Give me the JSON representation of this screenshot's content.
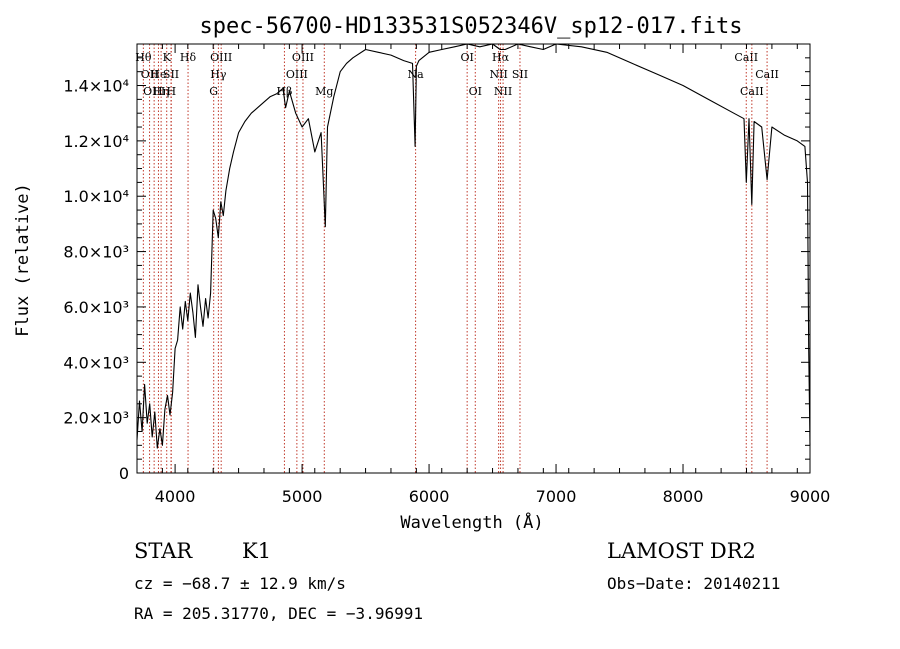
{
  "chart_data": {
    "type": "line",
    "title": "spec-56700-HD133531S052346V_sp12-017.fits",
    "xlabel": "Wavelength (Å)",
    "ylabel": "Flux (relative)",
    "xlim": [
      3700,
      9000
    ],
    "ylim": [
      0,
      15500
    ],
    "x_ticks": [
      4000,
      5000,
      6000,
      7000,
      8000,
      9000
    ],
    "y_ticks": [
      {
        "value": 0,
        "label": "0"
      },
      {
        "value": 2000,
        "label": "2.0×10³"
      },
      {
        "value": 4000,
        "label": "4.0×10³"
      },
      {
        "value": 6000,
        "label": "6.0×10³"
      },
      {
        "value": 8000,
        "label": "8.0×10³"
      },
      {
        "value": 10000,
        "label": "1.0×10⁴"
      },
      {
        "value": 12000,
        "label": "1.2×10⁴"
      },
      {
        "value": 14000,
        "label": "1.4×10⁴"
      }
    ],
    "grid": false,
    "series": [
      {
        "x": [
          3700,
          3720,
          3740,
          3760,
          3780,
          3800,
          3820,
          3840,
          3860,
          3880,
          3900,
          3920,
          3940,
          3960,
          3980,
          4000,
          4020,
          4040,
          4060,
          4080,
          4100,
          4120,
          4140,
          4160,
          4180,
          4200,
          4220,
          4240,
          4260,
          4280,
          4300,
          4320,
          4340,
          4360,
          4380,
          4400,
          4430,
          4460,
          4500,
          4550,
          4600,
          4650,
          4700,
          4750,
          4800,
          4850,
          4870,
          4900,
          4950,
          5000,
          5050,
          5100,
          5150,
          5170,
          5183,
          5200,
          5250,
          5300,
          5350,
          5400,
          5500,
          5600,
          5700,
          5800,
          5870,
          5890,
          5900,
          5920,
          6000,
          6100,
          6200,
          6300,
          6400,
          6500,
          6560,
          6600,
          6700,
          6800,
          6900,
          7000,
          7200,
          7400,
          7600,
          7800,
          8000,
          8200,
          8400,
          8480,
          8498,
          8520,
          8542,
          8560,
          8620,
          8662,
          8700,
          8800,
          8900,
          8960,
          8980,
          8990,
          9000
        ],
        "y": [
          1200,
          2600,
          1500,
          3200,
          1800,
          2500,
          1300,
          2200,
          900,
          1600,
          1000,
          2300,
          2800,
          2100,
          2900,
          4500,
          4800,
          6000,
          5200,
          6200,
          5500,
          6500,
          5800,
          4900,
          6800,
          6000,
          5300,
          6300,
          5600,
          6500,
          9500,
          9200,
          8500,
          9800,
          9300,
          10200,
          11000,
          11600,
          12300,
          12700,
          13000,
          13200,
          13400,
          13600,
          13700,
          13900,
          13200,
          13800,
          13000,
          12500,
          12800,
          11600,
          12300,
          10200,
          8900,
          12500,
          13600,
          14500,
          14800,
          15000,
          15300,
          15200,
          15100,
          14900,
          14800,
          11800,
          14700,
          14900,
          15200,
          15300,
          15400,
          15500,
          15400,
          15500,
          15300,
          15300,
          15500,
          15400,
          15300,
          15500,
          15400,
          15200,
          14800,
          14400,
          14000,
          13500,
          13000,
          12800,
          10500,
          12800,
          9700,
          12700,
          12500,
          10600,
          12500,
          12200,
          12000,
          11800,
          10500,
          4500,
          1000
        ]
      }
    ],
    "line_markers": [
      {
        "x": 3750,
        "label": "Hθ",
        "row": 0
      },
      {
        "x": 3799,
        "label": "OII",
        "row": 1
      },
      {
        "x": 3835,
        "label": "OIII",
        "row": 2
      },
      {
        "x": 3869,
        "label": "He",
        "row": 1
      },
      {
        "x": 3890,
        "label": "Hη",
        "row": 2
      },
      {
        "x": 3934,
        "label": "K",
        "row": 0
      },
      {
        "x": 3968,
        "label": "SII",
        "row": 1
      },
      {
        "x": 3970,
        "label": "H",
        "row": 2
      },
      {
        "x": 4102,
        "label": "Hδ",
        "row": 0
      },
      {
        "x": 4304,
        "label": "G",
        "row": 2
      },
      {
        "x": 4341,
        "label": "Hγ",
        "row": 1
      },
      {
        "x": 4363,
        "label": "OIII",
        "row": 0
      },
      {
        "x": 4861,
        "label": "Hβ",
        "row": 2
      },
      {
        "x": 4959,
        "label": "OIII",
        "row": 1
      },
      {
        "x": 5007,
        "label": "OIII",
        "row": 0
      },
      {
        "x": 5175,
        "label": "Mg",
        "row": 2
      },
      {
        "x": 5894,
        "label": "Na",
        "row": 1
      },
      {
        "x": 6300,
        "label": "OI",
        "row": 0
      },
      {
        "x": 6364,
        "label": "OI",
        "row": 2
      },
      {
        "x": 6548,
        "label": "NII",
        "row": 1
      },
      {
        "x": 6563,
        "label": "Hα",
        "row": 0
      },
      {
        "x": 6583,
        "label": "NII",
        "row": 2
      },
      {
        "x": 6716,
        "label": "SII",
        "row": 1
      },
      {
        "x": 8498,
        "label": "CaII",
        "row": 0
      },
      {
        "x": 8542,
        "label": "CaII",
        "row": 2
      },
      {
        "x": 8662,
        "label": "CaII",
        "row": 1
      }
    ]
  },
  "info": {
    "class_label": "STAR",
    "subclass_label": "K1",
    "survey_label": "LAMOST DR2",
    "redshift_line": "cz = −68.7 ± 12.9 km/s",
    "obs_date_line": "Obs−Date: 20140211",
    "coords_line": "RA = 205.31770, DEC =  −3.96991"
  },
  "colors": {
    "spectrum": "#000000",
    "marker_lines": "#c0392b",
    "axes": "#000000"
  }
}
